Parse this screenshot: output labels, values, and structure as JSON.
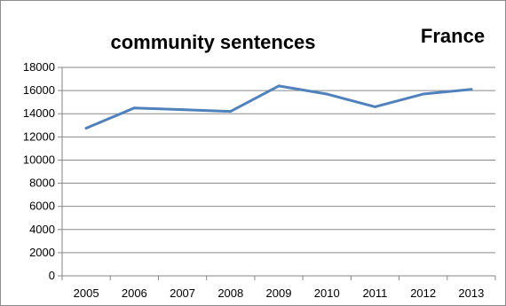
{
  "colors": {
    "series": "#4f81bd",
    "grid": "#898989",
    "axis": "#868686",
    "frame": "#8c8c8c",
    "text": "#000000"
  },
  "chart_data": {
    "type": "line",
    "title": "community sentences",
    "annotation": "France",
    "xlabel": "",
    "ylabel": "",
    "x": [
      "2005",
      "2006",
      "2007",
      "2008",
      "2009",
      "2010",
      "2011",
      "2012",
      "2013"
    ],
    "series": [
      {
        "values": [
          12750,
          14500,
          14350,
          14200,
          16400,
          15700,
          14600,
          15700,
          16100
        ]
      }
    ],
    "ylim": [
      0,
      18000
    ],
    "yticks": [
      0,
      2000,
      4000,
      6000,
      8000,
      10000,
      12000,
      14000,
      16000,
      18000
    ],
    "grid": true,
    "legend": "none"
  }
}
